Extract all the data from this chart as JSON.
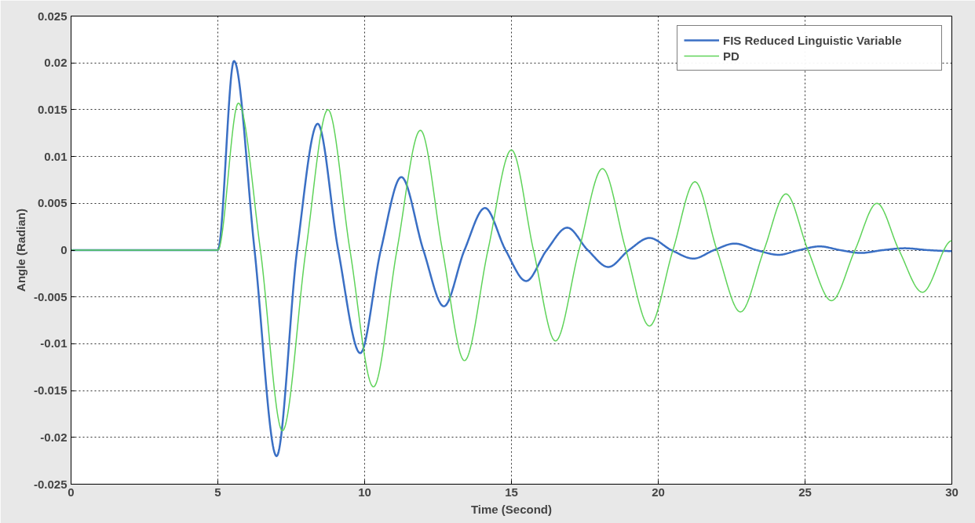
{
  "chart_data": {
    "type": "line",
    "xlabel": "Time (Second)",
    "ylabel": "Angle (Radian)",
    "xlim": [
      0,
      30
    ],
    "xticks": [
      0,
      5,
      10,
      15,
      20,
      25,
      30
    ],
    "ylim": [
      -0.025,
      0.025
    ],
    "yticks": [
      -0.025,
      -0.02,
      -0.015,
      -0.01,
      -0.005,
      0,
      0.005,
      0.01,
      0.015,
      0.02,
      0.025
    ],
    "grid": true,
    "legend": "top right",
    "marker": "none",
    "series": [
      {
        "name": "FIS Reduced Linguistic Variable",
        "color": "#3a6fc4",
        "x": [
          0,
          5,
          5.55,
          6.25,
          7.0,
          7.7,
          8.4,
          9.1,
          9.85,
          10.55,
          11.25,
          12.0,
          12.7,
          13.4,
          14.1,
          14.8,
          15.5,
          16.2,
          16.9,
          17.6,
          18.3,
          19.0,
          19.7,
          20.45,
          21.2,
          21.9,
          22.6,
          23.35,
          24.1,
          24.8,
          25.5,
          26.2,
          26.9,
          27.65,
          28.4,
          29.2,
          30
        ],
        "values": [
          0,
          0,
          0.0202,
          0,
          -0.022,
          0,
          0.0135,
          0,
          -0.011,
          0,
          0.0078,
          0,
          -0.006,
          0,
          0.0045,
          0,
          -0.0033,
          0,
          0.0024,
          0,
          -0.0018,
          0,
          0.0013,
          0,
          -0.0009,
          0,
          0.0007,
          0,
          -0.0005,
          0,
          0.0004,
          0,
          -0.0003,
          0,
          0.0002,
          0,
          -0.0001
        ]
      },
      {
        "name": "PD",
        "color": "#5fd35a",
        "x": [
          0,
          5,
          5.7,
          6.45,
          7.2,
          8.0,
          8.75,
          9.5,
          10.3,
          11.1,
          11.9,
          12.65,
          13.4,
          14.2,
          15.0,
          15.75,
          16.5,
          17.3,
          18.1,
          18.9,
          19.7,
          20.5,
          21.25,
          22.0,
          22.8,
          23.6,
          24.35,
          25.1,
          25.9,
          26.7,
          27.45,
          28.2,
          29.0,
          30
        ],
        "values": [
          0,
          0,
          0.0157,
          0,
          -0.0193,
          0,
          0.015,
          0,
          -0.0146,
          0,
          0.0128,
          0,
          -0.0118,
          0,
          0.0107,
          0,
          -0.0097,
          0,
          0.0087,
          0,
          -0.0081,
          0,
          0.0073,
          0,
          -0.0066,
          0,
          0.006,
          0,
          -0.0054,
          0,
          0.005,
          0,
          -0.0045,
          0.001
        ]
      }
    ]
  }
}
